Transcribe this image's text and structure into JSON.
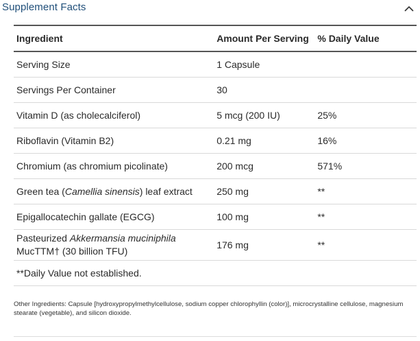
{
  "header": {
    "title": "Supplement Facts",
    "toggle_icon": "chevron-up-icon"
  },
  "table": {
    "columns": [
      "Ingredient",
      "Amount Per Serving",
      "% Daily Value"
    ],
    "rows": [
      {
        "ingredient": "Serving Size",
        "amount": "1 Capsule",
        "dv": ""
      },
      {
        "ingredient": "Servings Per Container",
        "amount": "30",
        "dv": ""
      },
      {
        "ingredient": "Vitamin D (as cholecalciferol)",
        "amount": "5 mcg (200 IU)",
        "dv": "25%"
      },
      {
        "ingredient": "Riboflavin (Vitamin B2)",
        "amount": "0.21 mg",
        "dv": "16%"
      },
      {
        "ingredient": "Chromium (as chromium picolinate)",
        "amount": "200 mcg",
        "dv": "571%"
      },
      {
        "ingredient_prefix": "Green tea (",
        "ingredient_italic": "Camellia sinensis",
        "ingredient_suffix": ") leaf extract",
        "amount": "250 mg",
        "dv": "**"
      },
      {
        "ingredient": "Epigallocatechin gallate (EGCG)",
        "amount": "100 mg",
        "dv": "**"
      },
      {
        "ingredient_prefix": "Pasteurized ",
        "ingredient_italic": "Akkermansia muciniphila",
        "ingredient_line2": "MucTTM† (30 billion TFU)",
        "amount": "176 mg",
        "dv": "**"
      }
    ],
    "footnote": "**Daily Value not established."
  },
  "other_ingredients": "Other Ingredients: Capsule [hydroxypropylmethylcellulose, sodium copper chlorophyllin (color)], microcrystalline cellulose, magnesium stearate (vegetable), and silicon dioxide.",
  "colors": {
    "title": "#1f4e79",
    "text": "#2a2a2a",
    "rule": "#555555",
    "divider": "#d9d9d9"
  }
}
